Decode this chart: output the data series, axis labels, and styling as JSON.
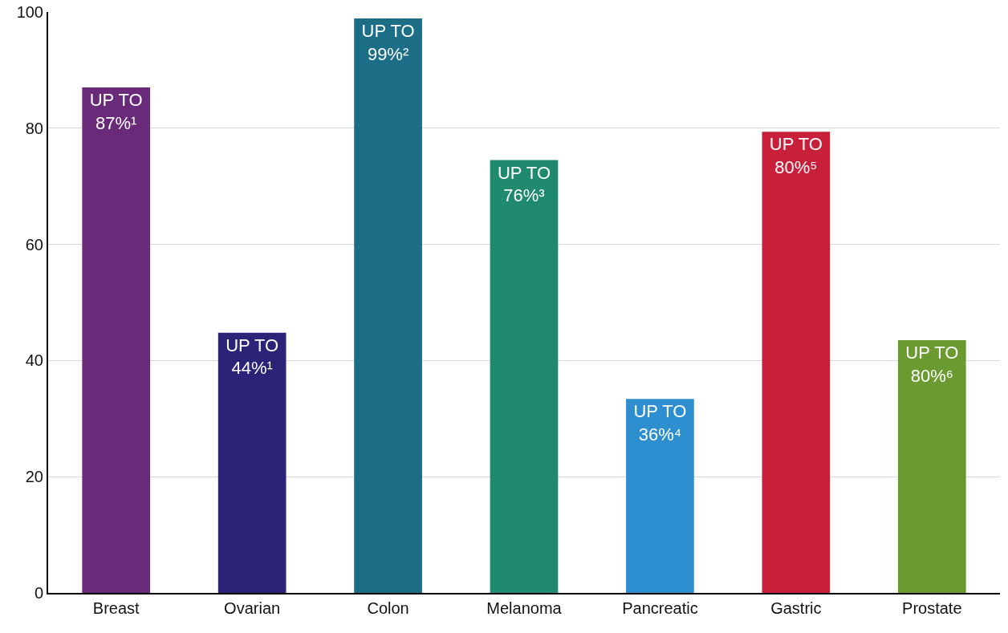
{
  "chart_data": {
    "type": "bar",
    "categories": [
      "Breast",
      "Ovarian",
      "Colon",
      "Melanoma",
      "Pancreatic",
      "Gastric",
      "Prostate"
    ],
    "values": [
      87,
      44.8,
      98.9,
      74.5,
      33.4,
      79.4,
      43.5
    ],
    "colors": [
      "#6a2a7a",
      "#2b2377",
      "#1b6e86",
      "#1f8a6e",
      "#2e8fd0",
      "#c8203a",
      "#6a9a30"
    ],
    "value_labels": [
      "UP TO\n87%¹",
      "UP TO\n44%¹",
      "UP TO\n99%²",
      "UP TO\n76%³",
      "UP TO\n36%⁴",
      "UP TO\n80%⁵",
      "UP TO\n80%⁶"
    ],
    "ylim": [
      0,
      100
    ],
    "yticks": [
      0,
      20,
      40,
      60,
      80,
      100
    ],
    "grid": "y"
  }
}
